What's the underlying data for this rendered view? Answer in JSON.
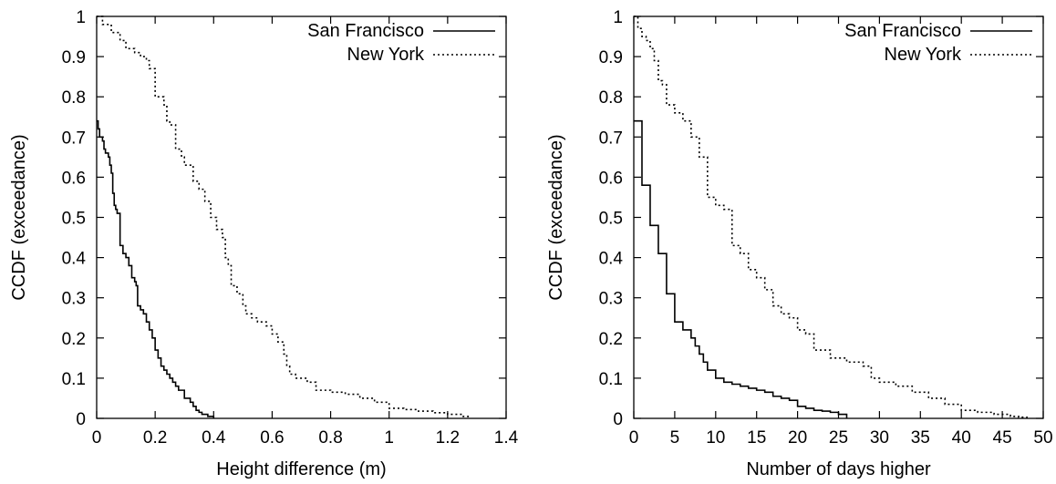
{
  "chart_data": [
    {
      "type": "line",
      "xlabel": "Height difference (m)",
      "ylabel": "CCDF (exceedance)",
      "xlim": [
        0,
        1.4
      ],
      "ylim": [
        0,
        1
      ],
      "x_ticks": [
        "0",
        "0.2",
        "0.4",
        "0.6",
        "0.8",
        "1",
        "1.2",
        "1.4"
      ],
      "y_ticks": [
        "0",
        "0.1",
        "0.2",
        "0.3",
        "0.4",
        "0.5",
        "0.6",
        "0.7",
        "0.8",
        "0.9",
        "1"
      ],
      "grid": false,
      "legend_position": "top-right",
      "series": [
        {
          "name": "San Francisco",
          "style": "solid",
          "x": [
            0,
            0.005,
            0.01,
            0.02,
            0.025,
            0.03,
            0.04,
            0.045,
            0.05,
            0.055,
            0.06,
            0.065,
            0.07,
            0.08,
            0.09,
            0.1,
            0.11,
            0.12,
            0.13,
            0.135,
            0.14,
            0.15,
            0.16,
            0.17,
            0.18,
            0.19,
            0.2,
            0.21,
            0.22,
            0.23,
            0.24,
            0.25,
            0.26,
            0.27,
            0.28,
            0.3,
            0.32,
            0.33,
            0.34,
            0.35,
            0.36,
            0.38,
            0.4
          ],
          "y": [
            0.74,
            0.72,
            0.7,
            0.69,
            0.67,
            0.66,
            0.65,
            0.63,
            0.61,
            0.56,
            0.53,
            0.52,
            0.51,
            0.43,
            0.41,
            0.4,
            0.38,
            0.35,
            0.34,
            0.33,
            0.28,
            0.27,
            0.26,
            0.24,
            0.22,
            0.2,
            0.17,
            0.15,
            0.13,
            0.12,
            0.11,
            0.1,
            0.09,
            0.08,
            0.07,
            0.05,
            0.04,
            0.03,
            0.02,
            0.015,
            0.01,
            0.005,
            0
          ],
          "shape": "hv"
        },
        {
          "name": "New York",
          "style": "dotted",
          "x": [
            0,
            0.02,
            0.05,
            0.08,
            0.1,
            0.13,
            0.15,
            0.17,
            0.18,
            0.2,
            0.22,
            0.23,
            0.24,
            0.25,
            0.27,
            0.29,
            0.3,
            0.33,
            0.35,
            0.37,
            0.39,
            0.41,
            0.43,
            0.44,
            0.45,
            0.46,
            0.48,
            0.5,
            0.51,
            0.53,
            0.55,
            0.58,
            0.6,
            0.62,
            0.64,
            0.65,
            0.66,
            0.68,
            0.72,
            0.75,
            0.8,
            0.85,
            0.9,
            0.95,
            1,
            1.05,
            1.1,
            1.15,
            1.2,
            1.25,
            1.27
          ],
          "y": [
            1,
            0.98,
            0.96,
            0.94,
            0.92,
            0.91,
            0.9,
            0.89,
            0.87,
            0.8,
            0.8,
            0.78,
            0.74,
            0.73,
            0.67,
            0.65,
            0.63,
            0.59,
            0.57,
            0.54,
            0.5,
            0.47,
            0.45,
            0.4,
            0.38,
            0.33,
            0.31,
            0.28,
            0.26,
            0.25,
            0.24,
            0.23,
            0.21,
            0.19,
            0.16,
            0.13,
            0.11,
            0.1,
            0.09,
            0.07,
            0.065,
            0.06,
            0.05,
            0.04,
            0.025,
            0.022,
            0.018,
            0.014,
            0.01,
            0.005,
            0
          ],
          "shape": "hv"
        }
      ]
    },
    {
      "type": "line",
      "xlabel": "Number of days higher",
      "ylabel": "CCDF (exceedance)",
      "xlim": [
        0,
        50
      ],
      "ylim": [
        0,
        1
      ],
      "x_ticks": [
        "0",
        "5",
        "10",
        "15",
        "20",
        "25",
        "30",
        "35",
        "40",
        "45",
        "50"
      ],
      "y_ticks": [
        "0",
        "0.1",
        "0.2",
        "0.3",
        "0.4",
        "0.5",
        "0.6",
        "0.7",
        "0.8",
        "0.9",
        "1"
      ],
      "grid": false,
      "legend_position": "top-right",
      "series": [
        {
          "name": "San Francisco",
          "style": "solid",
          "x": [
            0,
            1,
            2,
            3,
            4,
            5,
            6,
            7,
            7.5,
            8,
            8.5,
            9,
            10,
            11,
            12,
            13,
            14,
            15,
            16,
            17,
            18,
            19,
            20,
            21,
            22,
            23,
            24,
            25,
            26
          ],
          "y": [
            0.74,
            0.58,
            0.48,
            0.41,
            0.31,
            0.24,
            0.22,
            0.2,
            0.18,
            0.16,
            0.14,
            0.12,
            0.1,
            0.09,
            0.085,
            0.08,
            0.075,
            0.07,
            0.065,
            0.055,
            0.05,
            0.045,
            0.03,
            0.025,
            0.02,
            0.018,
            0.015,
            0.01,
            0
          ],
          "shape": "hv"
        },
        {
          "name": "New York",
          "style": "dotted",
          "x": [
            0,
            0.5,
            1,
            1.5,
            2,
            2.5,
            3,
            3.5,
            4,
            5,
            6,
            7,
            8,
            9,
            10,
            11,
            12,
            13,
            14,
            15,
            16,
            17,
            18,
            19,
            20,
            21,
            22,
            24,
            26,
            28,
            29,
            30,
            32,
            34,
            36,
            38,
            40,
            42,
            44,
            46,
            47,
            48
          ],
          "y": [
            1,
            0.97,
            0.95,
            0.94,
            0.92,
            0.89,
            0.84,
            0.83,
            0.78,
            0.76,
            0.74,
            0.7,
            0.65,
            0.55,
            0.53,
            0.52,
            0.43,
            0.41,
            0.37,
            0.35,
            0.32,
            0.28,
            0.26,
            0.25,
            0.22,
            0.21,
            0.17,
            0.15,
            0.14,
            0.13,
            0.1,
            0.09,
            0.08,
            0.065,
            0.05,
            0.035,
            0.02,
            0.015,
            0.01,
            0.005,
            0.003,
            0
          ],
          "shape": "hv"
        }
      ]
    }
  ]
}
